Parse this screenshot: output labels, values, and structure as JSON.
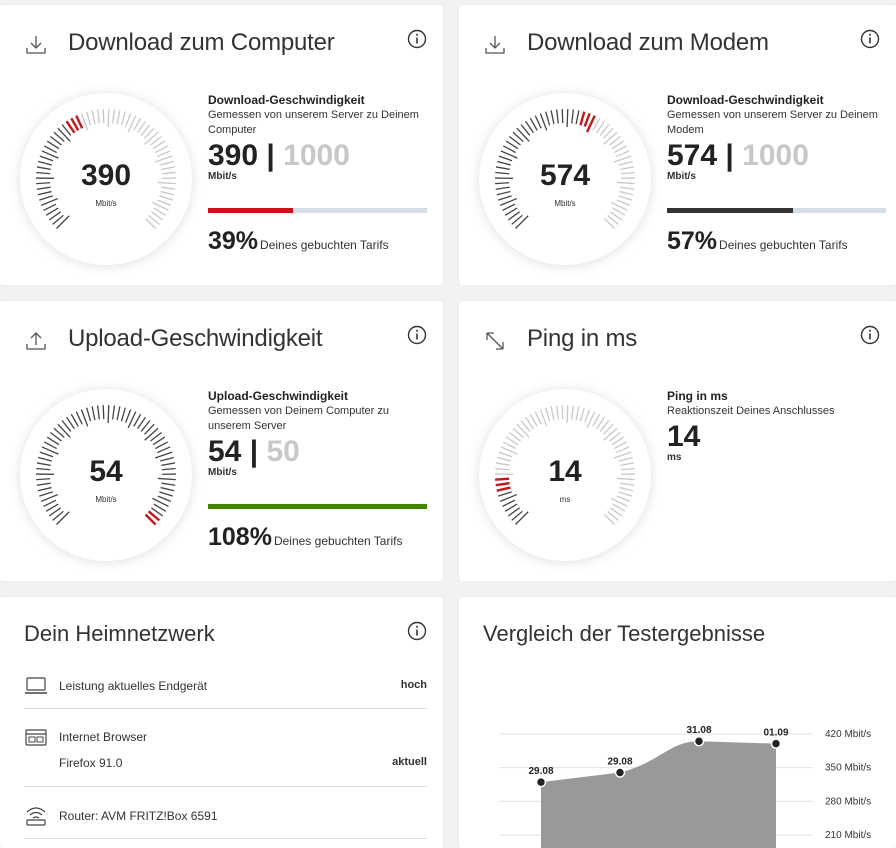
{
  "download_computer": {
    "title": "Download zum Computer",
    "gauge_value": "390",
    "gauge_unit": "Mbit/s",
    "label": "Download-Geschwindigkeit",
    "description": "Gemessen von unserem Server zu Deinem Computer",
    "value": "390",
    "separator": "|",
    "max": "1000",
    "unit": "Mbit/s",
    "percent": "39%",
    "percent_text": "Deines gebuchten Tarifs",
    "fraction": 0.39,
    "accent": "#c4161c"
  },
  "download_modem": {
    "title": "Download zum Modem",
    "gauge_value": "574",
    "gauge_unit": "Mbit/s",
    "label": "Download-Geschwindigkeit",
    "description": "Gemessen von unserem Server zu Deinem Modem",
    "value": "574",
    "separator": "|",
    "max": "1000",
    "unit": "Mbit/s",
    "percent": "57%",
    "percent_text": "Deines gebuchten Tarifs",
    "fraction": 0.574,
    "accent": "#333333"
  },
  "upload": {
    "title": "Upload-Geschwindigkeit",
    "gauge_value": "54",
    "gauge_unit": "Mbit/s",
    "label": "Upload-Geschwindigkeit",
    "description": "Gemessen von Deinem Computer zu unserem Server",
    "value": "54",
    "separator": "|",
    "max": "50",
    "unit": "Mbit/s",
    "percent": "108%",
    "percent_text": "Deines gebuchten Tarifs",
    "fraction": 1.0,
    "accent": "#428600"
  },
  "ping": {
    "title": "Ping in ms",
    "gauge_value": "14",
    "gauge_unit": "ms",
    "label": "Ping in ms",
    "description": "Reaktionszeit Deines Anschlusses",
    "value": "14",
    "unit": "ms",
    "fraction": 0.14,
    "accent": "#c4161c"
  },
  "heimnetz": {
    "title": "Dein Heimnetzwerk",
    "rows": [
      {
        "icon": "laptop-icon",
        "label": "Leistung aktuelles Endgerät",
        "value": "hoch"
      },
      {
        "icon": "browser-icon",
        "label": "Internet Browser",
        "sub_label": "Firefox 91.0",
        "value": "aktuell"
      },
      {
        "icon": "wifi-router-icon",
        "label": "Router: AVM FRITZ!Box 6591"
      }
    ]
  },
  "vergleich": {
    "title": "Vergleich der Testergebnisse"
  },
  "chart_data": {
    "type": "area",
    "categories": [
      "29.08",
      "29.08",
      "31.08",
      "01.09"
    ],
    "values": [
      320,
      340,
      405,
      400
    ],
    "y_tick_labels": [
      "420 Mbit/s",
      "350 Mbit/s",
      "280 Mbit/s",
      "210 Mbit/s"
    ],
    "y_ticks": [
      420,
      350,
      280,
      210
    ],
    "grid": true,
    "color": "#999999"
  }
}
